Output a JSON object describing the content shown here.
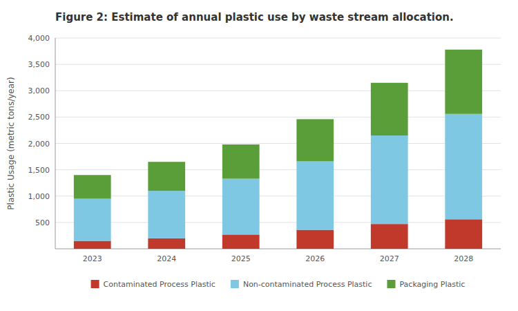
{
  "chart_data": {
    "type": "bar",
    "stacked": true,
    "title": "Figure 2: Estimate of annual plastic use by waste stream allocation.",
    "ylabel": "Plastic Usage (metric tons/year)",
    "categories": [
      "2023",
      "2024",
      "2025",
      "2026",
      "2027",
      "2028"
    ],
    "series": [
      {
        "name": "Contaminated Process Plastic",
        "color": "#c0392b",
        "values": [
          150,
          200,
          270,
          360,
          470,
          560
        ]
      },
      {
        "name": "Non-contaminated Process Plastic",
        "color": "#7ec8e3",
        "values": [
          800,
          900,
          1060,
          1300,
          1680,
          2000
        ]
      },
      {
        "name": "Packaging Plastic",
        "color": "#5a9e3a",
        "values": [
          450,
          550,
          650,
          800,
          1000,
          1220
        ]
      }
    ],
    "ylim": [
      0,
      4000
    ],
    "yticks": [
      500,
      {
        "value": 1000,
        "label": "1,000"
      },
      {
        "value": 1500,
        "label": "1,500"
      },
      {
        "value": 2000,
        "label": "2,000"
      },
      {
        "value": 2500,
        "label": "2,500"
      },
      {
        "value": 3000,
        "label": "3,000"
      },
      {
        "value": 3500,
        "label": "3,500"
      },
      {
        "value": 4000,
        "label": "4,000"
      }
    ],
    "grid": true,
    "legend": "bottom"
  }
}
